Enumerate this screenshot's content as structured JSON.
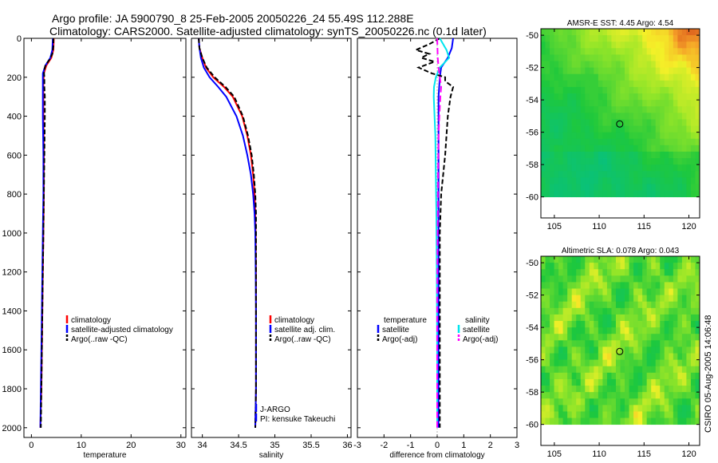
{
  "header": {
    "title_line1": "Argo profile: JA 5900790_8 25-Feb-2005 20050226_24 55.49S 112.288E",
    "title_line2": "Climatology: CARS2000. Satellite-adjusted climatology: synTS_20050226.nc (0.1d later)"
  },
  "side_label": "CSIRO 05-Aug-2005 14:06:48",
  "colors": {
    "climatology": "#ff0000",
    "satellite": "#0000ff",
    "argo": "#000000",
    "sal_satellite": "#00e5ee",
    "sal_argo": "#ff00ff"
  },
  "chart_data": [
    {
      "id": "temperature",
      "type": "line",
      "xlabel": "temperature",
      "xlim": [
        -1.5,
        31
      ],
      "xticks": [
        0,
        10,
        20,
        30
      ],
      "ylim": [
        0,
        2050
      ],
      "yticks": [
        0,
        200,
        400,
        600,
        800,
        1000,
        1200,
        1400,
        1600,
        1800,
        2000
      ],
      "legend": {
        "position": "lower-right",
        "entries": [
          "climatology",
          "satellite-adjusted climatology",
          "Argo(..raw -QC)"
        ]
      },
      "series": [
        {
          "name": "climatology",
          "color": "#ff0000",
          "dash": "",
          "depth": [
            0,
            60,
            100,
            140,
            180,
            230,
            300,
            400,
            600,
            800,
            1000,
            1200,
            1400,
            1600,
            1800,
            2000
          ],
          "values": [
            4.5,
            4.4,
            4.0,
            3.0,
            2.5,
            2.4,
            2.4,
            2.4,
            2.5,
            2.5,
            2.4,
            2.3,
            2.2,
            2.1,
            2.0,
            1.8
          ]
        },
        {
          "name": "satellite-adjusted climatology",
          "color": "#0000ff",
          "dash": "",
          "depth": [
            0,
            60,
            100,
            140,
            180,
            230,
            300,
            400,
            600,
            800,
            1000,
            1200,
            1400,
            1600,
            1800,
            2000
          ],
          "values": [
            4.3,
            4.2,
            3.8,
            2.8,
            2.3,
            2.3,
            2.3,
            2.3,
            2.4,
            2.4,
            2.3,
            2.2,
            2.1,
            2.0,
            1.9,
            1.8
          ]
        },
        {
          "name": "Argo(..raw -QC)",
          "color": "#000000",
          "dash": "6,3",
          "depth": [
            0,
            40,
            80,
            110,
            140,
            170,
            200,
            250,
            300,
            400,
            600,
            800,
            1000,
            1200,
            1400,
            1600,
            1800,
            2000
          ],
          "values": [
            4.4,
            4.4,
            4.2,
            3.6,
            2.8,
            2.5,
            2.6,
            2.6,
            2.7,
            2.7,
            2.6,
            2.5,
            2.4,
            2.3,
            2.2,
            2.1,
            2.0,
            1.9
          ]
        }
      ]
    },
    {
      "id": "salinity",
      "type": "line",
      "xlabel": "salinity",
      "xlim": [
        33.85,
        36.05
      ],
      "xticks": [
        34,
        34.5,
        35,
        35.5,
        36
      ],
      "ylim": [
        0,
        2050
      ],
      "yticks": [
        0,
        200,
        400,
        600,
        800,
        1000,
        1200,
        1400,
        1600,
        1800,
        2000
      ],
      "legend": {
        "position": "lower-right",
        "entries": [
          "climatology",
          "satellite adj. clim.",
          "Argo(..raw -QC)"
        ]
      },
      "annotation": [
        "J-ARGO",
        "PI: kensuke Takeuchi"
      ],
      "series": [
        {
          "name": "climatology",
          "color": "#ff0000",
          "dash": "",
          "depth": [
            0,
            50,
            100,
            150,
            200,
            250,
            300,
            400,
            500,
            600,
            700,
            800,
            900,
            1000,
            1200,
            1400,
            1600,
            1800,
            2000
          ],
          "values": [
            33.95,
            33.96,
            34.0,
            34.05,
            34.15,
            34.3,
            34.42,
            34.55,
            34.62,
            34.67,
            34.7,
            34.72,
            34.73,
            34.735,
            34.74,
            34.74,
            34.74,
            34.74,
            34.73
          ]
        },
        {
          "name": "satellite adj. clim.",
          "color": "#0000ff",
          "dash": "",
          "depth": [
            0,
            50,
            100,
            150,
            200,
            250,
            300,
            400,
            500,
            600,
            700,
            800,
            900,
            1000,
            1200,
            1400,
            1600,
            1800,
            2000
          ],
          "values": [
            33.95,
            33.96,
            33.98,
            34.02,
            34.1,
            34.22,
            34.33,
            34.47,
            34.56,
            34.62,
            34.67,
            34.7,
            34.72,
            34.73,
            34.735,
            34.74,
            34.74,
            34.74,
            34.73
          ]
        },
        {
          "name": "Argo(..raw -QC)",
          "color": "#000000",
          "dash": "6,3",
          "depth": [
            0,
            50,
            100,
            150,
            200,
            250,
            300,
            400,
            500,
            600,
            700,
            800,
            900,
            1000,
            1200,
            1400,
            1600,
            1800,
            2000
          ],
          "values": [
            33.95,
            33.96,
            34.0,
            34.06,
            34.17,
            34.32,
            34.44,
            34.56,
            34.63,
            34.68,
            34.71,
            34.73,
            34.74,
            34.74,
            34.74,
            34.74,
            34.74,
            34.74,
            34.73
          ]
        }
      ]
    },
    {
      "id": "difference",
      "type": "line",
      "xlabel": "difference from climatology",
      "xlim": [
        -3,
        3
      ],
      "xticks": [
        -3,
        -2,
        -1,
        0,
        1,
        2,
        3
      ],
      "ylim": [
        0,
        2050
      ],
      "yticks": [
        0,
        200,
        400,
        600,
        800,
        1000,
        1200,
        1400,
        1600,
        1800,
        2000
      ],
      "legend": {
        "position": "lower",
        "columns": [
          {
            "title": "temperature",
            "entries": [
              "satellite",
              "Argo(-adj)"
            ]
          },
          {
            "title": "salinity",
            "entries": [
              "satellite",
              "Argo(-adj)"
            ]
          }
        ]
      },
      "series": [
        {
          "name": "temperature satellite",
          "color": "#0000ff",
          "dash": "",
          "depth": [
            0,
            50,
            100,
            150,
            200,
            300,
            400,
            600,
            800,
            1000,
            1200,
            1400,
            1600,
            1800,
            2000
          ],
          "values": [
            0.6,
            0.55,
            0.4,
            0.15,
            0.1,
            0.05,
            0.05,
            0.05,
            0.05,
            0.05,
            0.05,
            0.05,
            0.05,
            0.05,
            0.05
          ]
        },
        {
          "name": "temperature Argo(-adj)",
          "color": "#000000",
          "dash": "6,3",
          "depth": [
            0,
            30,
            60,
            80,
            100,
            120,
            150,
            180,
            200,
            220,
            250,
            300,
            400,
            600,
            800,
            1000,
            1200,
            1400,
            1600,
            1800,
            2000
          ],
          "values": [
            0.1,
            -0.3,
            -0.8,
            -0.3,
            -0.6,
            -0.1,
            -0.7,
            -0.2,
            0.3,
            0.3,
            0.6,
            0.5,
            0.4,
            0.3,
            0.15,
            0.1,
            0.1,
            0.1,
            0.1,
            0.1,
            0.1
          ]
        },
        {
          "name": "salinity satellite",
          "color": "#00e5ee",
          "dash": "",
          "depth": [
            0,
            60,
            100,
            150,
            200,
            250,
            300,
            400,
            500,
            700,
            900,
            1100,
            1400,
            1700,
            2000
          ],
          "values": [
            0.1,
            0.35,
            0.45,
            0.1,
            -0.05,
            -0.12,
            -0.13,
            -0.1,
            -0.07,
            -0.05,
            -0.03,
            -0.02,
            -0.01,
            0.0,
            0.0
          ]
        },
        {
          "name": "salinity Argo(-adj)",
          "color": "#ff00ff",
          "dash": "8,4",
          "depth": [
            0,
            100,
            150,
            200,
            250,
            300,
            400,
            500,
            700,
            900,
            1100,
            1400,
            1700,
            2000
          ],
          "values": [
            0.0,
            0.02,
            0.05,
            0.1,
            0.15,
            0.12,
            0.08,
            0.05,
            0.03,
            0.02,
            0.01,
            0.0,
            0.0,
            0.0
          ]
        }
      ]
    },
    {
      "id": "sst_map",
      "type": "heatmap",
      "title": "AMSR-E SST: 4.45 Argo: 4.54",
      "xlim": [
        103.5,
        121.2
      ],
      "xticks": [
        105,
        110,
        115,
        120
      ],
      "ylim": [
        -61.3,
        -49.6
      ],
      "yticks": [
        -50,
        -52,
        -54,
        -56,
        -58,
        -60
      ],
      "data_lat_range": [
        -60,
        -49.6
      ],
      "marker": {
        "lon": 112.288,
        "lat": -55.49
      },
      "field": "warm north-east corner, cooler green south"
    },
    {
      "id": "sla_map",
      "type": "heatmap",
      "title": "Altimetric SLA: 0.078 Argo: 0.043",
      "xlim": [
        103.5,
        121.2
      ],
      "xticks": [
        105,
        110,
        115,
        120
      ],
      "ylim": [
        -61.3,
        -49.6
      ],
      "yticks": [
        -50,
        -52,
        -54,
        -56,
        -58,
        -60
      ],
      "data_lat_range": [
        -60,
        -49.6
      ],
      "marker": {
        "lon": 112.288,
        "lat": -55.49
      },
      "field": "patchy green/yellow anomalies"
    }
  ]
}
